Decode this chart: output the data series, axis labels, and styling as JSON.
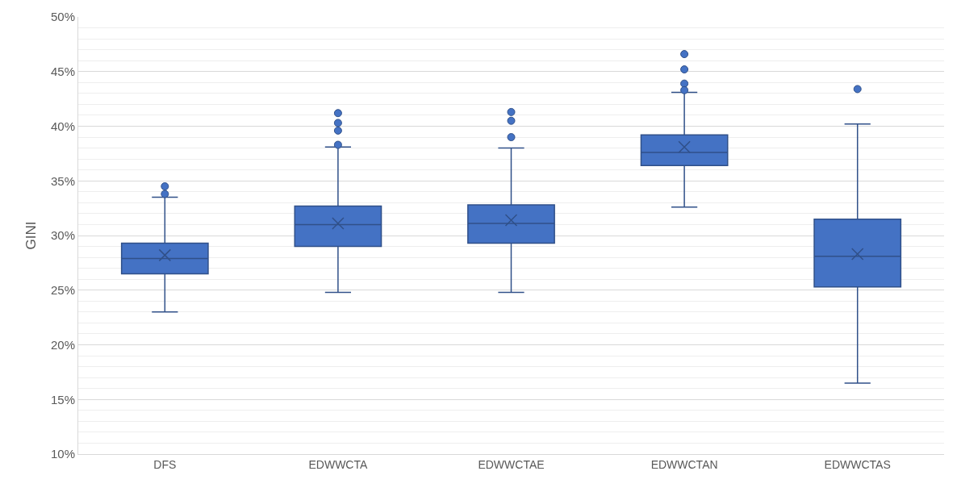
{
  "chart_data": {
    "type": "box",
    "ylabel": "GINI",
    "categories": [
      "DFS",
      "EDWWCTA",
      "EDWWCTAE",
      "EDWWCTAN",
      "EDWWCTAS"
    ],
    "color": "#4472c4",
    "boxes": [
      {
        "low": 23.0,
        "q1": 26.5,
        "median": 27.9,
        "q3": 29.3,
        "high": 33.5,
        "mean": 28.2,
        "outliers": [
          34.5,
          33.8
        ]
      },
      {
        "low": 24.8,
        "q1": 29.0,
        "median": 31.0,
        "q3": 32.7,
        "high": 38.1,
        "mean": 31.1,
        "outliers": [
          41.2,
          40.3,
          39.6,
          38.3
        ]
      },
      {
        "low": 24.8,
        "q1": 29.3,
        "median": 31.1,
        "q3": 32.8,
        "high": 38.0,
        "mean": 31.4,
        "outliers": [
          41.3,
          40.5,
          39.0
        ]
      },
      {
        "low": 32.6,
        "q1": 36.4,
        "median": 37.6,
        "q3": 39.2,
        "high": 43.1,
        "mean": 38.1,
        "outliers": [
          46.6,
          45.2,
          43.9,
          43.3
        ]
      },
      {
        "low": 16.5,
        "q1": 25.3,
        "median": 28.1,
        "q3": 31.5,
        "high": 40.2,
        "mean": 28.3,
        "outliers": [
          43.4
        ]
      }
    ],
    "ylim": [
      10,
      50
    ],
    "yticks": [
      {
        "value": 10,
        "label": "10%"
      },
      {
        "value": 15,
        "label": "15%"
      },
      {
        "value": 20,
        "label": "20%"
      },
      {
        "value": 25,
        "label": "25%"
      },
      {
        "value": 30,
        "label": "30%"
      },
      {
        "value": 35,
        "label": "35%"
      },
      {
        "value": 40,
        "label": "40%"
      },
      {
        "value": 45,
        "label": "45%"
      },
      {
        "value": 50,
        "label": "50%"
      }
    ],
    "grid": "y"
  }
}
